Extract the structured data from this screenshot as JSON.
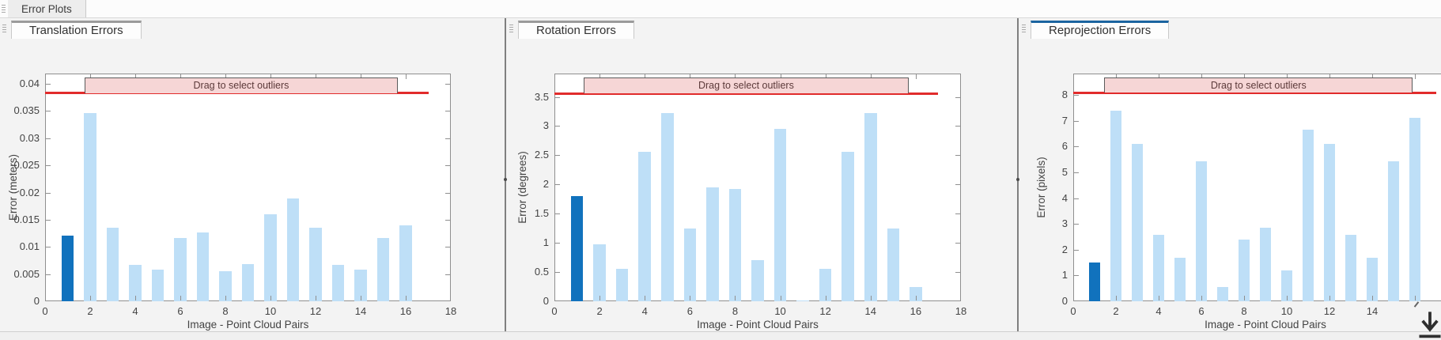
{
  "app": {
    "tab_label": "Error Plots"
  },
  "panels": [
    {
      "tab_label": "Translation Errors",
      "active": false
    },
    {
      "tab_label": "Rotation Errors",
      "active": false
    },
    {
      "tab_label": "Reprojection Errors",
      "active": true
    }
  ],
  "chart_data": [
    {
      "type": "bar",
      "title": "Translation Errors",
      "xlabel": "Image - Point Cloud Pairs",
      "ylabel": "Error (meters)",
      "xlim": [
        0,
        18
      ],
      "ylim": [
        0,
        0.0419
      ],
      "grid": false,
      "xticks": [
        0,
        2,
        4,
        6,
        8,
        10,
        12,
        14,
        16,
        18
      ],
      "xtick_labels": [
        "0",
        "2",
        "4",
        "6",
        "8",
        "10",
        "12",
        "14",
        "16",
        "18"
      ],
      "yticks": [
        0,
        0.005,
        0.01,
        0.015,
        0.02,
        0.025,
        0.03,
        0.035,
        0.04
      ],
      "ytick_labels": [
        "0",
        "0.005",
        "0.01",
        "0.015",
        "0.02",
        "0.025",
        "0.03",
        "0.035",
        "0.04"
      ],
      "x": [
        1,
        2,
        3,
        4,
        5,
        6,
        7,
        8,
        9,
        10,
        11,
        12,
        13,
        14,
        15,
        16
      ],
      "values": [
        0.0121,
        0.0346,
        0.0136,
        0.0067,
        0.0058,
        0.0117,
        0.0127,
        0.0056,
        0.0068,
        0.016,
        0.0189,
        0.0136,
        0.0067,
        0.0058,
        0.0116,
        0.014
      ],
      "highlight_index": 0,
      "threshold": {
        "value": 0.0383,
        "x_extent": [
          0,
          17
        ]
      },
      "band": {
        "label": "Drag to select outliers",
        "x": [
          1.75,
          15.65
        ],
        "y": [
          0.0383,
          0.0412
        ]
      }
    },
    {
      "type": "bar",
      "title": "Rotation Errors",
      "xlabel": "Image - Point Cloud Pairs",
      "ylabel": "Error (degrees)",
      "xlim": [
        0,
        18
      ],
      "ylim": [
        0,
        3.9
      ],
      "grid": false,
      "xticks": [
        0,
        2,
        4,
        6,
        8,
        10,
        12,
        14,
        16,
        18
      ],
      "xtick_labels": [
        "0",
        "2",
        "4",
        "6",
        "8",
        "10",
        "12",
        "14",
        "16",
        "18"
      ],
      "yticks": [
        0,
        0.5,
        1,
        1.5,
        2,
        2.5,
        3,
        3.5
      ],
      "ytick_labels": [
        "0",
        "0.5",
        "1",
        "1.5",
        "2",
        "2.5",
        "3",
        "3.5"
      ],
      "x": [
        1,
        2,
        3,
        4,
        5,
        6,
        7,
        8,
        9,
        10,
        11,
        12,
        13,
        14,
        15,
        16
      ],
      "values": [
        1.8,
        0.98,
        0.56,
        2.56,
        3.23,
        1.25,
        1.95,
        1.92,
        0.7,
        2.95,
        0.02,
        0.56,
        2.56,
        3.23,
        1.25,
        0.25
      ],
      "highlight_index": 0,
      "threshold": {
        "value": 3.56,
        "x_extent": [
          0,
          17
        ]
      },
      "band": {
        "label": "Drag to select outliers",
        "x": [
          1.3,
          15.68
        ],
        "y": [
          3.56,
          3.835
        ]
      }
    },
    {
      "type": "bar",
      "title": "Reprojection Errors",
      "xlabel": "Image - Point Cloud Pairs",
      "ylabel": "Error (pixels)",
      "xlim": [
        0,
        18
      ],
      "ylim": [
        0,
        8.83
      ],
      "grid": false,
      "xticks": [
        0,
        2,
        4,
        6,
        8,
        10,
        12,
        14
      ],
      "xtick_labels": [
        "0",
        "2",
        "4",
        "6",
        "8",
        "10",
        "12",
        "14"
      ],
      "yticks": [
        0,
        1,
        2,
        3,
        4,
        5,
        6,
        7,
        8
      ],
      "ytick_labels": [
        "0",
        "1",
        "2",
        "3",
        "4",
        "5",
        "6",
        "7",
        "8"
      ],
      "x": [
        1,
        2,
        3,
        4,
        5,
        6,
        7,
        8,
        9,
        10,
        11,
        12,
        13,
        14,
        15,
        16
      ],
      "values": [
        1.5,
        7.38,
        6.1,
        2.58,
        1.68,
        5.42,
        0.56,
        2.4,
        2.86,
        1.19,
        6.65,
        6.1,
        2.58,
        1.69,
        5.42,
        7.12
      ],
      "highlight_index": 0,
      "threshold": {
        "value": 8.08,
        "x_extent": [
          0,
          17
        ]
      },
      "band": {
        "label": "Drag to select outliers",
        "x": [
          1.45,
          15.9
        ],
        "y": [
          8.08,
          8.68
        ]
      }
    }
  ],
  "colors": {
    "bar_light": "#BEDFF7",
    "bar_dark": "#1172BD",
    "threshold_red": "#E12B2B",
    "band_fill": "#F6D6D6",
    "band_border": "#5a5a5a",
    "band_text": "#5C3A3A",
    "active_tab_accent": "#1B64A0",
    "inactive_tab_accent": "#9B9B9B",
    "axis_line": "#8F8F8F",
    "tick_text": "#434343"
  },
  "icons": {
    "panel_grip": "drag-grip-icon",
    "dock": "dock-down-arrow-icon"
  }
}
